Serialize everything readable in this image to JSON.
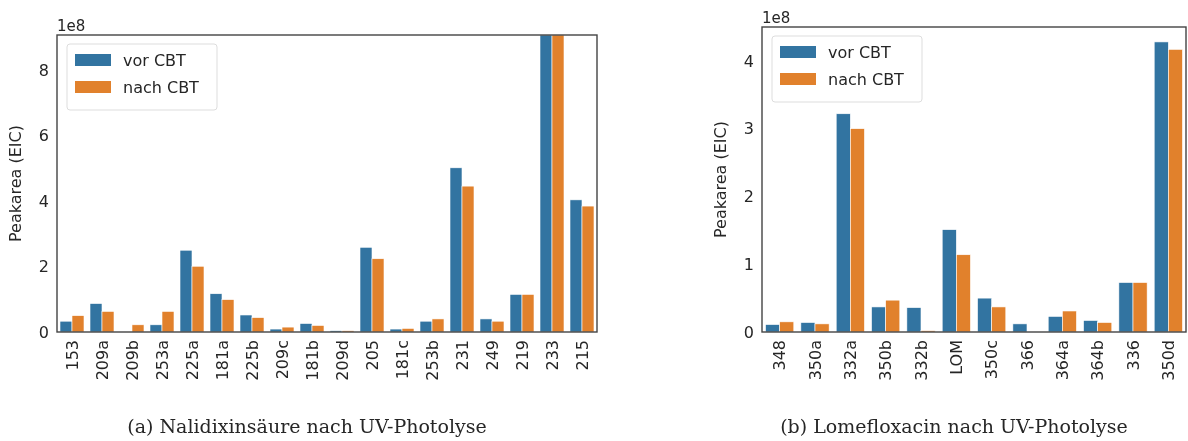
{
  "chart_data": [
    {
      "type": "bar",
      "title": "(a) Nalidixinsäure nach UV-Photolyse",
      "ylabel": "Peakarea (EIC)",
      "annotations": [
        "1e8"
      ],
      "categories": [
        "153",
        "209a",
        "209b",
        "253a",
        "225a",
        "181a",
        "225b",
        "209c",
        "181b",
        "209d",
        "205",
        "181c",
        "253b",
        "231",
        "249",
        "219",
        "233",
        "215"
      ],
      "series": [
        {
          "name": "vor CBT",
          "color": "#3274a1",
          "values": [
            0.33,
            0.87,
            0,
            0.22,
            2.5,
            1.17,
            0.52,
            0.09,
            0.26,
            0.04,
            2.59,
            0.09,
            0.33,
            5.02,
            0.4,
            1.15,
            9.08,
            4.04
          ]
        },
        {
          "name": "nach CBT",
          "color": "#e1812c",
          "values": [
            0.5,
            0.63,
            0.22,
            0.63,
            2.01,
            0.99,
            0.44,
            0.15,
            0.2,
            0.04,
            2.24,
            0.11,
            0.4,
            4.46,
            0.33,
            1.15,
            9.08,
            3.85
          ]
        }
      ],
      "ylim": [
        0,
        9.08
      ],
      "yticks": [
        0,
        2,
        4,
        6,
        8
      ],
      "legend": "top left",
      "grid": false
    },
    {
      "type": "bar",
      "title": "(b) Lomefloxacin nach UV-Photolyse",
      "ylabel": "Peakarea (EIC)",
      "annotations": [
        "1e8"
      ],
      "categories": [
        "348",
        "350a",
        "332a",
        "350b",
        "332b",
        "LOM",
        "350c",
        "366",
        "364a",
        "364b",
        "336",
        "350d"
      ],
      "series": [
        {
          "name": "vor CBT",
          "color": "#3274a1",
          "values": [
            0.11,
            0.14,
            3.22,
            0.37,
            0.36,
            1.51,
            0.5,
            0.12,
            0.23,
            0.17,
            0.73,
            4.28
          ]
        },
        {
          "name": "nach CBT",
          "color": "#e1812c",
          "values": [
            0.15,
            0.12,
            3.0,
            0.47,
            0.02,
            1.14,
            0.37,
            0,
            0.31,
            0.14,
            0.73,
            4.17
          ]
        }
      ],
      "ylim": [
        0,
        4.5
      ],
      "yticks": [
        0,
        1,
        2,
        3,
        4
      ],
      "legend": "top left",
      "grid": false
    }
  ]
}
